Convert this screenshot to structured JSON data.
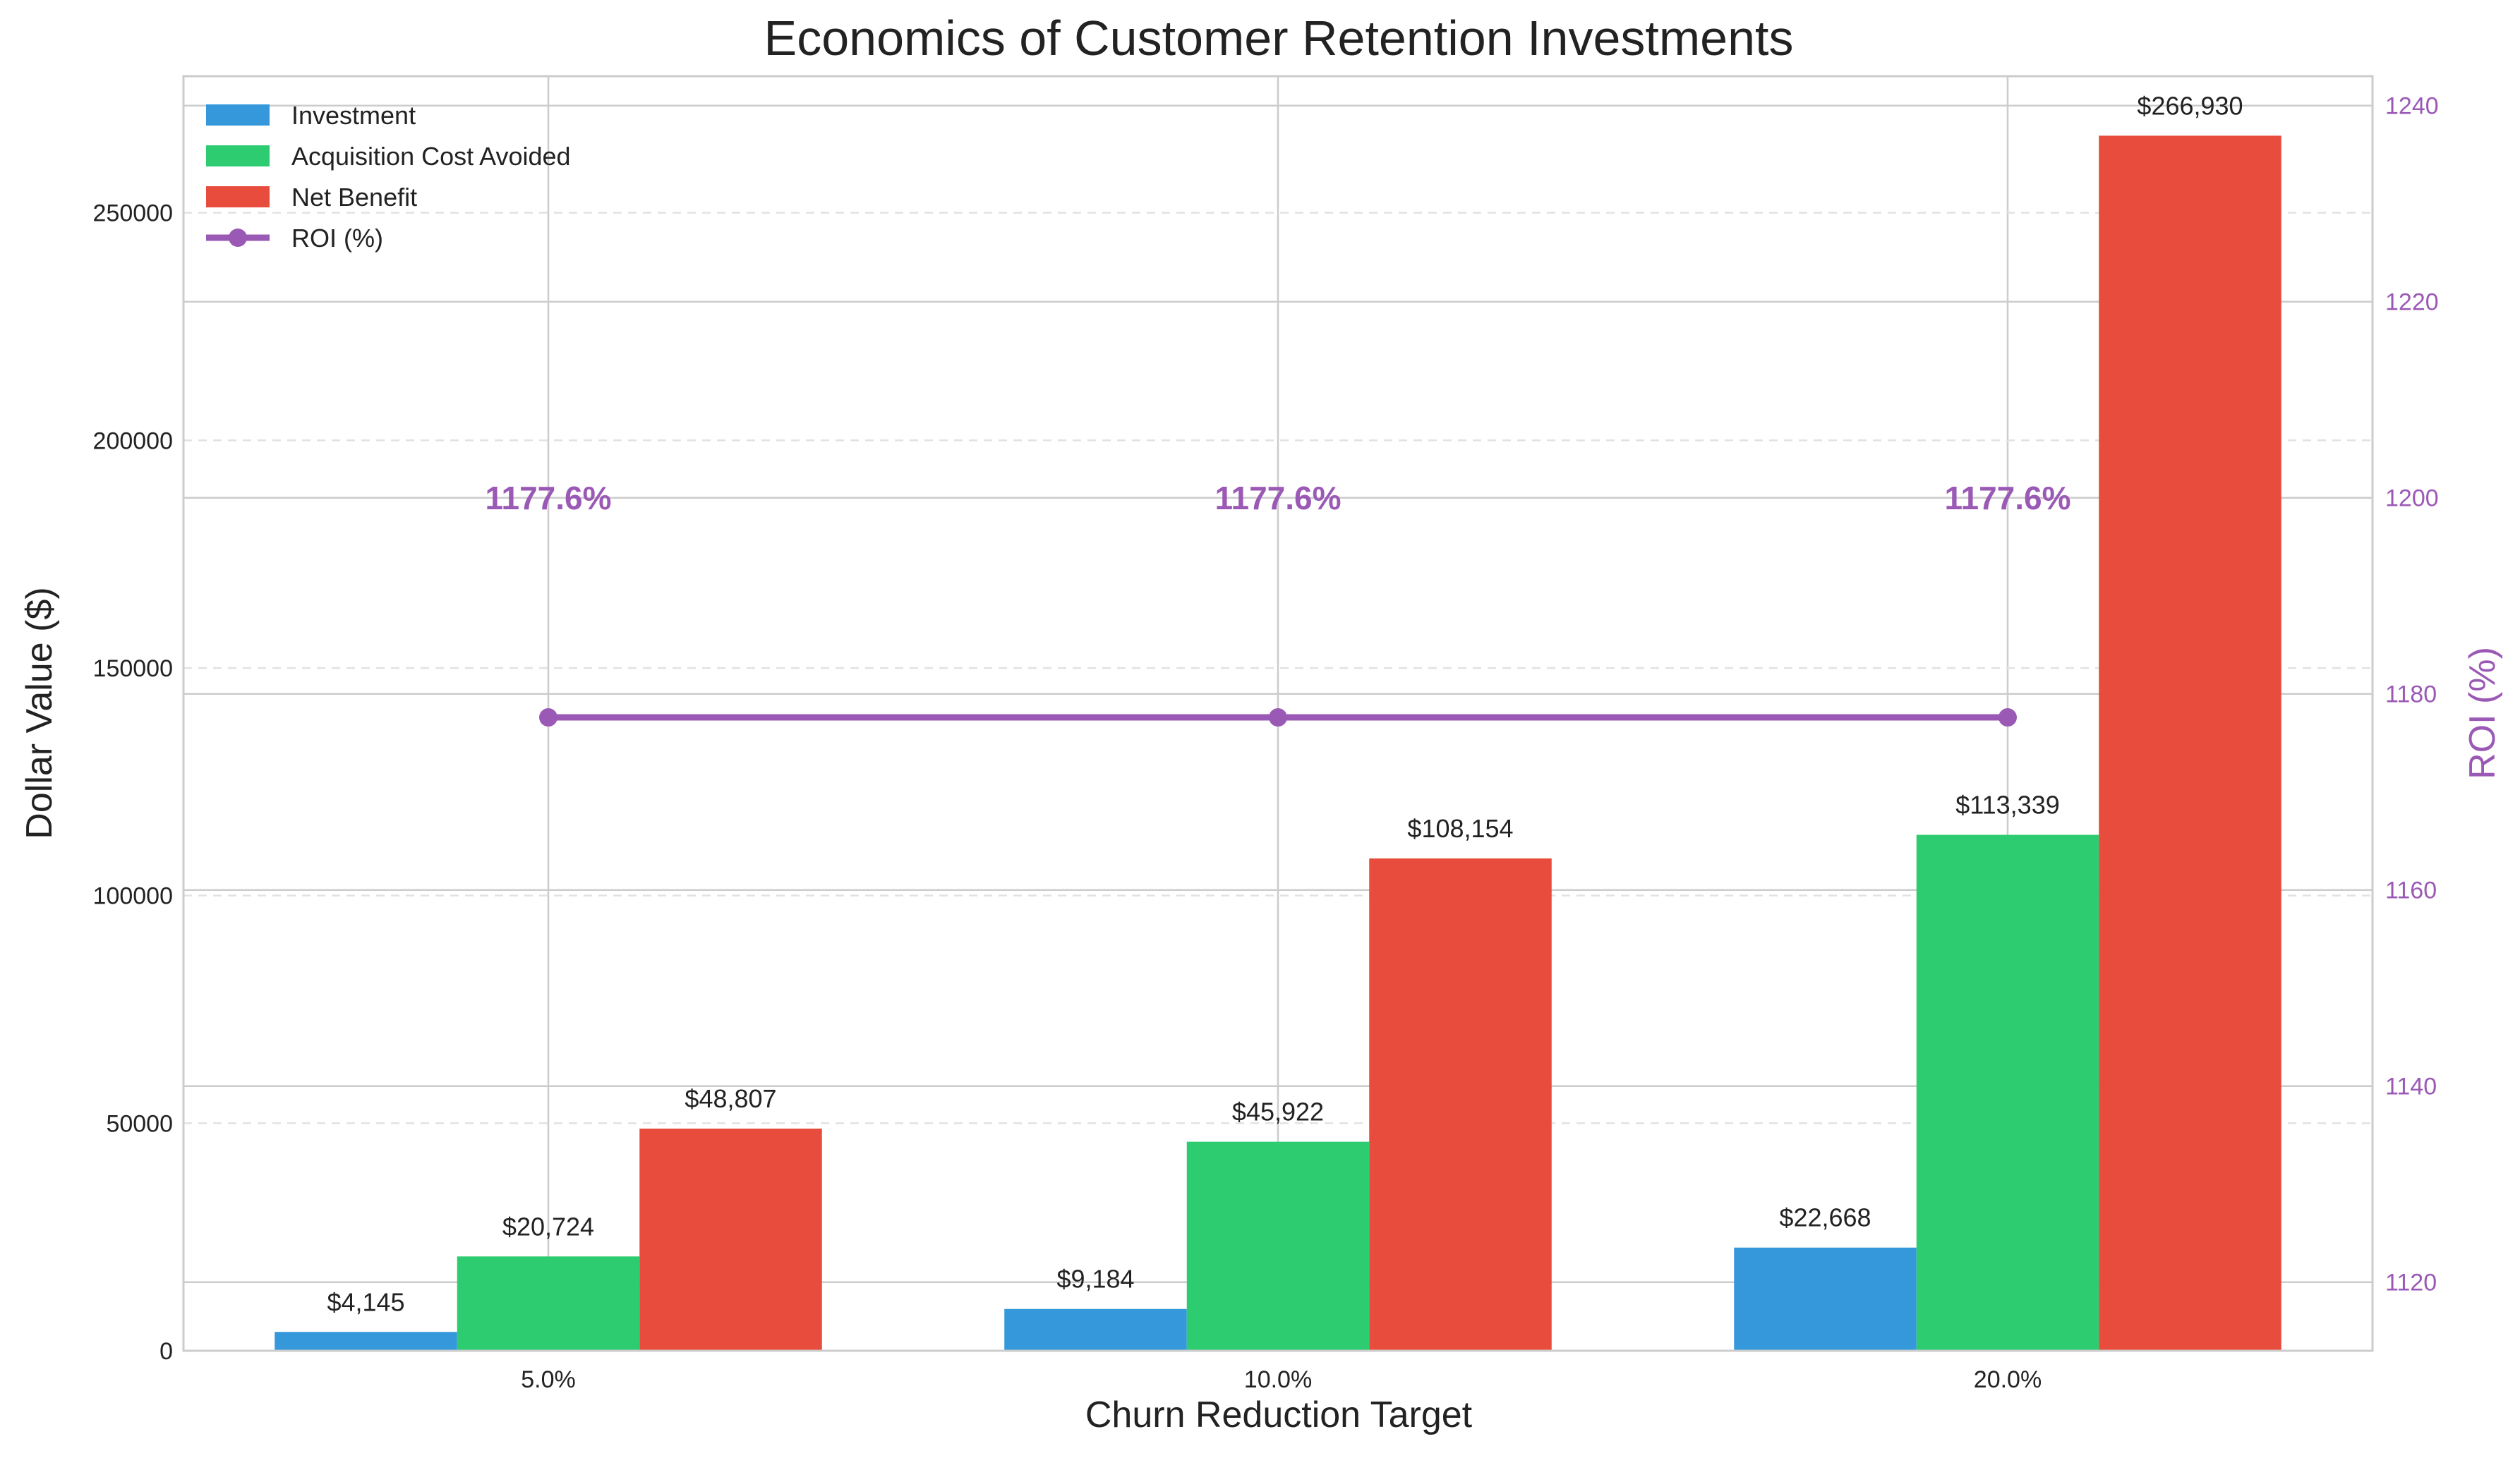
{
  "chart_data": {
    "type": "bar",
    "title": "Economics of Customer Retention Investments",
    "xlabel": "Churn Reduction Target",
    "ylabel": "Dollar Value ($)",
    "y2label": "ROI (%)",
    "categories": [
      "5.0%",
      "10.0%",
      "20.0%"
    ],
    "series": [
      {
        "name": "Investment",
        "color": "#3498db",
        "values": [
          4145,
          9184,
          22668
        ],
        "labels": [
          "$4,145",
          "$9,184",
          "$22,668"
        ]
      },
      {
        "name": "Acquisition Cost Avoided",
        "color": "#2ecc71",
        "values": [
          20724,
          45922,
          113339
        ],
        "labels": [
          "$20,724",
          "$45,922",
          "$113,339"
        ]
      },
      {
        "name": "Net Benefit",
        "color": "#e74c3c",
        "values": [
          48807,
          108154,
          266930
        ],
        "labels": [
          "$48,807",
          "$108,154",
          "$266,930"
        ]
      }
    ],
    "line_series": {
      "name": "ROI (%)",
      "color": "#9b59b6",
      "axis": "right",
      "values": [
        1177.6,
        1177.6,
        1177.6
      ],
      "labels": [
        "1177.6%",
        "1177.6%",
        "1177.6%"
      ]
    },
    "ylim": [
      0,
      280000
    ],
    "yticks": [
      0,
      50000,
      100000,
      150000,
      200000,
      250000
    ],
    "ytick_labels": [
      "0",
      "50000",
      "100000",
      "150000",
      "200000",
      "250000"
    ],
    "y2lim": [
      1113,
      1243
    ],
    "y2ticks": [
      1120,
      1140,
      1160,
      1180,
      1200,
      1220,
      1240
    ],
    "y2tick_labels": [
      "1120",
      "1140",
      "1160",
      "1180",
      "1200",
      "1220",
      "1240"
    ],
    "grid": true,
    "legend": "top-left",
    "colors": {
      "axis_right": "#9b59b6",
      "grid": "#cccccc",
      "frame": "#cccccc"
    }
  }
}
